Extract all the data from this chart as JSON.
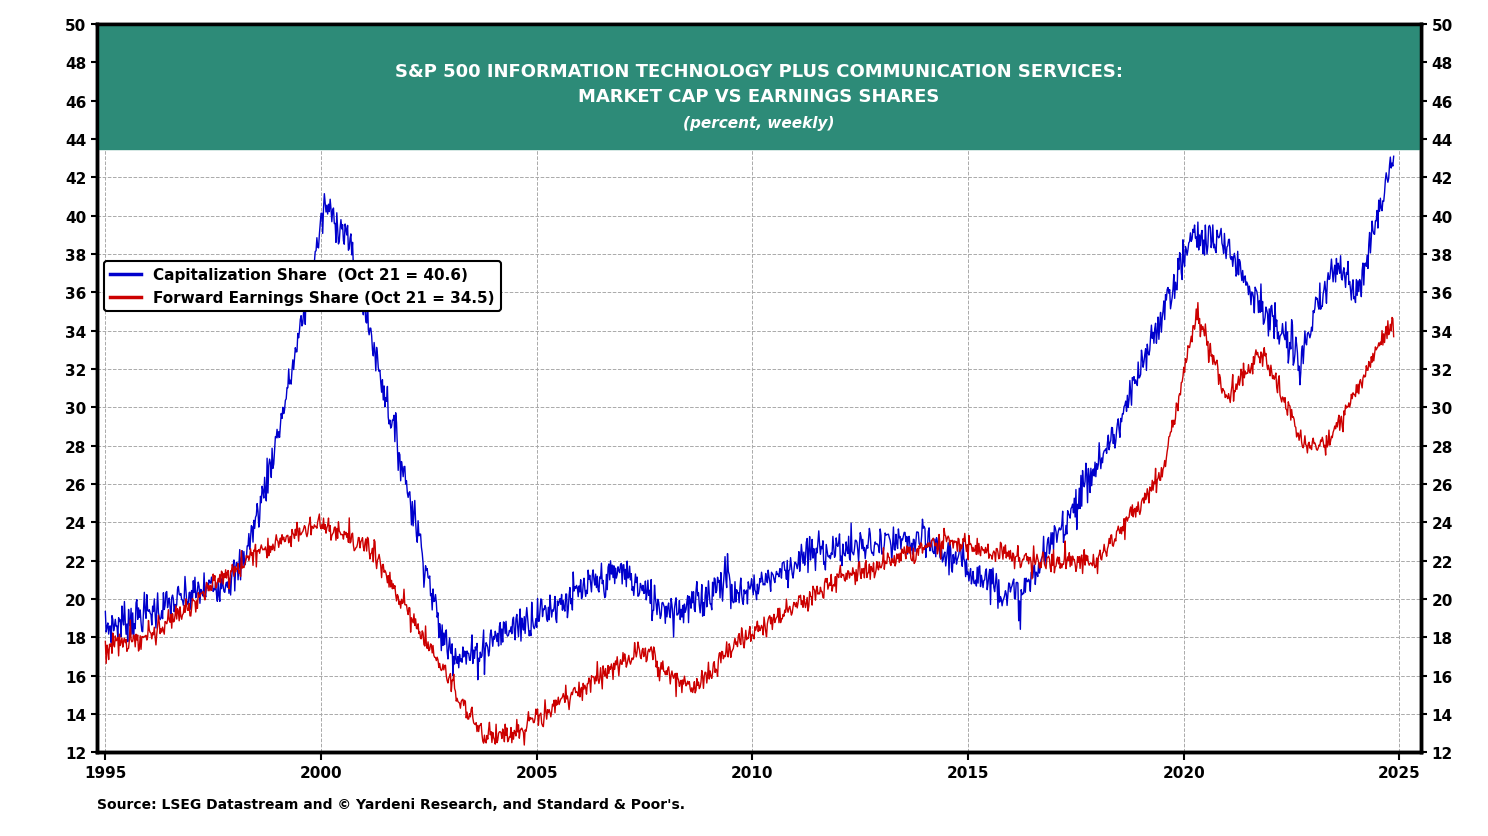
{
  "title_line1": "S&P 500 INFORMATION TECHNOLOGY PLUS COMMUNICATION SERVICES:",
  "title_line2": "MARKET CAP VS EARNINGS SHARES",
  "title_line3": "(percent, weekly)",
  "title_bg_color": "#2d8b78",
  "title_text_color": "#ffffff",
  "legend_label_blue": "Capitalization Share  (Oct 21 = 40.6)",
  "legend_label_red": "Forward Earnings Share (Oct 21 = 34.5)",
  "source_text": "Source: LSEG Datastream and © Yardeni Research, and Standard & Poor's.",
  "blue_color": "#0000cc",
  "red_color": "#cc0000",
  "ylim": [
    12,
    50
  ],
  "yticks": [
    12,
    14,
    16,
    18,
    20,
    22,
    24,
    26,
    28,
    30,
    32,
    34,
    36,
    38,
    40,
    42,
    44,
    46,
    48,
    50
  ],
  "xlim_start": 1994.8,
  "xlim_end": 2025.5,
  "xticks": [
    1995,
    2000,
    2005,
    2010,
    2015,
    2020,
    2025
  ],
  "background_color": "#ffffff",
  "grid_color": "#aaaaaa"
}
